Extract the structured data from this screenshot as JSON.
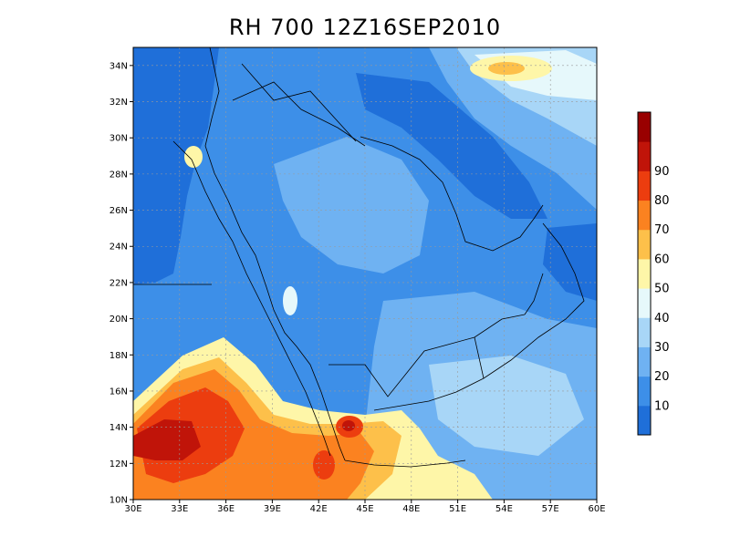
{
  "title": "RH 700 12Z16SEP2010",
  "map": {
    "projection": "latlon",
    "lon_range": [
      30,
      60
    ],
    "lat_range": [
      10,
      35
    ],
    "x_tick_labels": [
      "30E",
      "33E",
      "36E",
      "39E",
      "42E",
      "45E",
      "48E",
      "51E",
      "54E",
      "57E",
      "60E"
    ],
    "y_tick_labels": [
      "10N",
      "12N",
      "14N",
      "16N",
      "18N",
      "20N",
      "22N",
      "24N",
      "26N",
      "28N",
      "30N",
      "32N",
      "34N"
    ],
    "grid": true
  },
  "colorbar": {
    "levels": [
      10,
      20,
      30,
      40,
      50,
      60,
      70,
      80,
      90
    ],
    "labels": [
      "10",
      "20",
      "30",
      "40",
      "50",
      "60",
      "70",
      "80",
      "90"
    ],
    "colors": [
      "#1f6fd9",
      "#3d8fe8",
      "#6fb2f2",
      "#a8d6f7",
      "#e6f8fb",
      "#fef6a8",
      "#fdc04a",
      "#fb8220",
      "#ec3d0f",
      "#c01409",
      "#990000"
    ]
  }
}
